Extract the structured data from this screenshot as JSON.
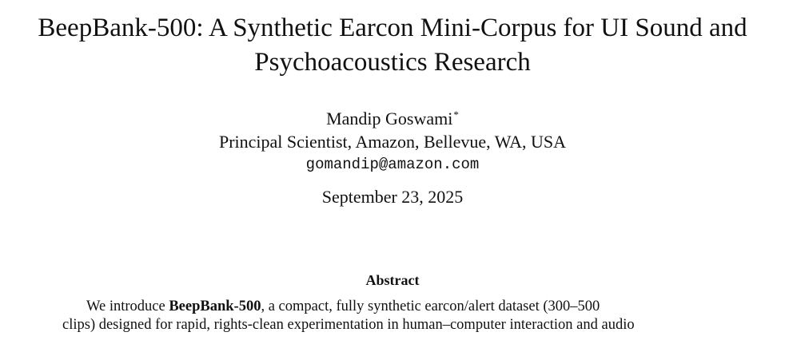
{
  "paper": {
    "title_line1": "BeepBank-500: A Synthetic Earcon Mini-Corpus for UI Sound and",
    "title_line2": "Psychoacoustics Research",
    "author_name": "Mandip Goswami",
    "author_marker": "*",
    "affiliation": "Principal Scientist, Amazon, Bellevue, WA, USA",
    "email": "gomandip@amazon.com",
    "date": "September 23, 2025"
  },
  "abstract": {
    "heading": "Abstract",
    "line1_prefix": "We introduce ",
    "line1_bold": "BeepBank-500",
    "line1_suffix": ", a compact, fully synthetic earcon/alert dataset (300–500",
    "line2": "clips) designed for rapid, rights-clean experimentation in human–computer interaction and audio"
  }
}
